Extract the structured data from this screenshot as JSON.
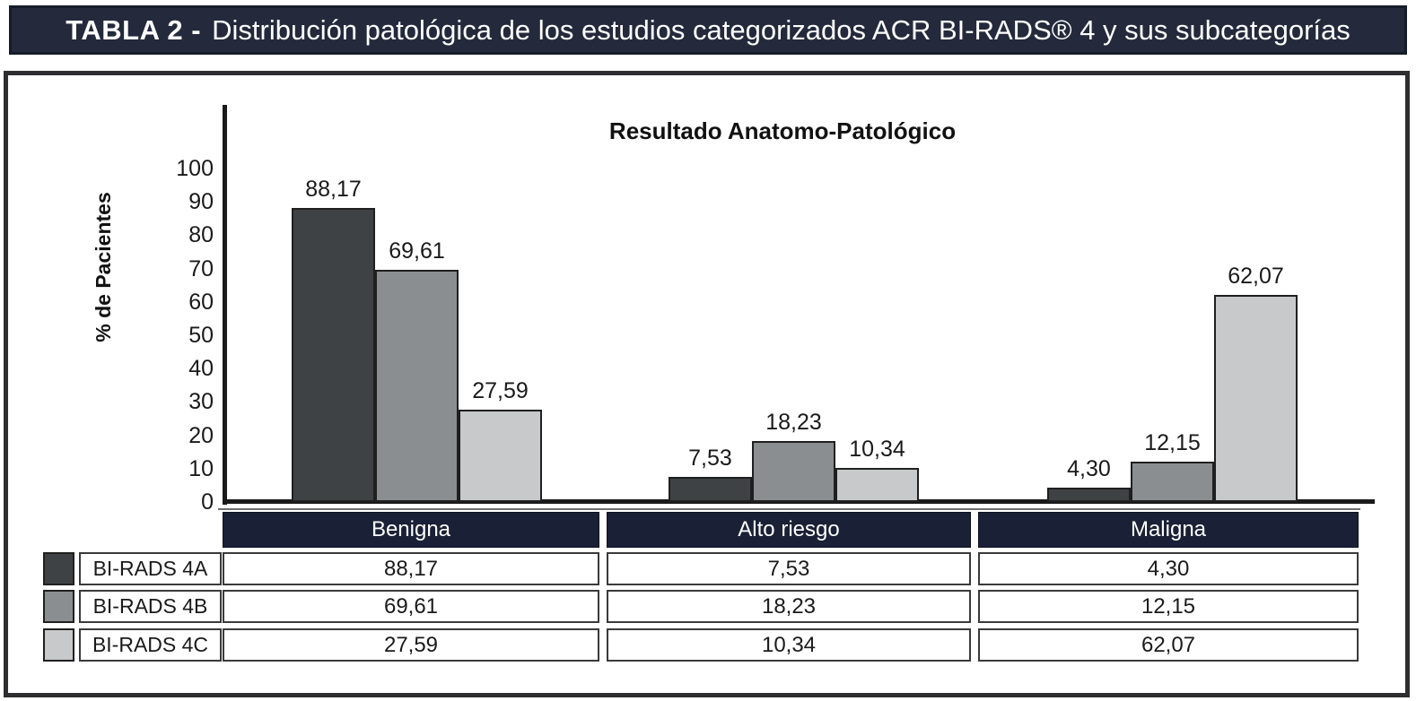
{
  "title_bar": {
    "prefix": "TABLA 2 -",
    "text": "Distribución patológica de los estudios categorizados ACR BI-RADS® 4 y sus subcategorías"
  },
  "chart_data": {
    "type": "bar",
    "title": "Resultado Anatomo-Patológico",
    "xlabel": "",
    "ylabel": "% de Pacientes",
    "ylim": [
      0,
      100
    ],
    "yticks": [
      100,
      90,
      80,
      70,
      60,
      50,
      40,
      30,
      20,
      10,
      0
    ],
    "grid": false,
    "legend_position": "table-left",
    "decimal_separator": ",",
    "categories": [
      "Benigna",
      "Alto riesgo",
      "Maligna"
    ],
    "series": [
      {
        "name": "BI-RADS 4A",
        "color": "#3f4245",
        "values": [
          88.17,
          7.53,
          4.3
        ]
      },
      {
        "name": "BI-RADS 4B",
        "color": "#8b8e91",
        "values": [
          69.61,
          18.23,
          12.15
        ]
      },
      {
        "name": "BI-RADS 4C",
        "color": "#c7c9cb",
        "values": [
          27.59,
          10.34,
          62.07
        ]
      }
    ]
  },
  "colors": {
    "title_bar_bg": "#242a3c",
    "table_header_bg": "#1a2136",
    "frame_border": "#2e2e30",
    "axis": "#1a1a1a"
  }
}
